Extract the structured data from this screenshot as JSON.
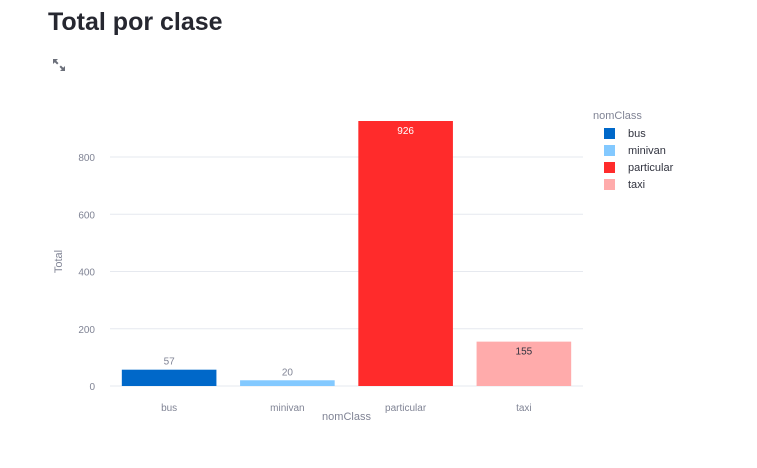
{
  "page": {
    "title": "Total por clase",
    "expand_icon": "fullscreen-expand-icon"
  },
  "chart_data": {
    "type": "bar",
    "categories": [
      "bus",
      "minivan",
      "particular",
      "taxi"
    ],
    "values": [
      57,
      20,
      926,
      155
    ],
    "data_labels": [
      "57",
      "20",
      "926",
      "155"
    ],
    "colors": [
      "#0068c9",
      "#83c9ff",
      "#ff2b2b",
      "#ffabab"
    ],
    "xlabel": "nomClass",
    "ylabel": "Total",
    "ylim": [
      0,
      926
    ],
    "yticks": [
      0,
      200,
      400,
      600,
      800
    ],
    "grid": true,
    "legend": {
      "title": "nomClass",
      "placement": "right",
      "entries": [
        "bus",
        "minivan",
        "particular",
        "taxi"
      ]
    }
  }
}
